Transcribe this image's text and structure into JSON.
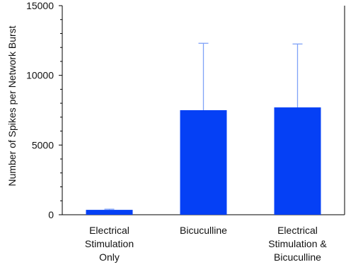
{
  "chart_data": {
    "type": "bar",
    "categories": [
      [
        "Electrical",
        "Stimulation",
        "Only"
      ],
      [
        "Bicuculline"
      ],
      [
        "Electrical",
        "Stimulation &",
        "Bicuculline"
      ]
    ],
    "values": [
      350,
      7500,
      7700
    ],
    "error_upper": [
      400,
      12300,
      12250
    ],
    "title": "",
    "xlabel": "",
    "ylabel": "Number of Spikes per Network Burst",
    "ylim": [
      0,
      15000
    ],
    "yticks": [
      0,
      5000,
      10000,
      15000
    ],
    "grid": false,
    "legend": "none",
    "colors": {
      "bar": "#0540F5",
      "error_bar": "#7FA2F7",
      "axis": "#000000"
    }
  }
}
